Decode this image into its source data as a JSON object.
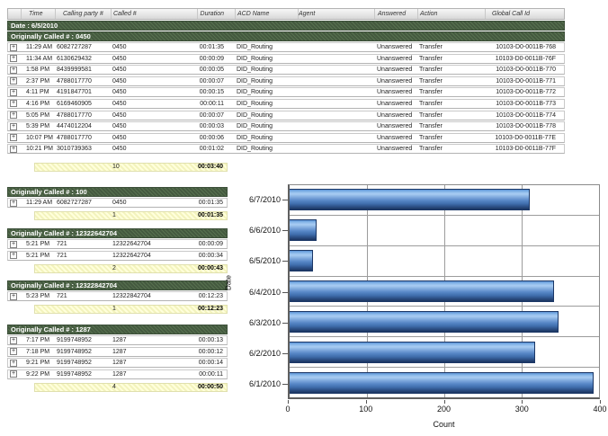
{
  "table": {
    "columns": [
      "Time",
      "Calling party #",
      "Called #",
      "Duration",
      "ACD Name",
      "Agent",
      "Answered",
      "Action",
      "Global Call Id"
    ],
    "expand_icon": "+"
  },
  "groups": [
    {
      "date_banner": "Date : 6/5/2010",
      "banner": "Originally Called # : 0450",
      "rows": [
        {
          "time": "11:29 AM",
          "calling": "6082727287",
          "called": "0450",
          "duration": "00:01:35",
          "acd": "DID_Routing",
          "agent": "",
          "answered": "Unanswered",
          "action": "Transfer",
          "global_call_id": "10103-D0-0011B-768"
        },
        {
          "time": "11:34 AM",
          "calling": "6130629432",
          "called": "0450",
          "duration": "00:00:09",
          "acd": "DID_Routing",
          "agent": "",
          "answered": "Unanswered",
          "action": "Transfer",
          "global_call_id": "10103-D0-0011B-76F"
        },
        {
          "time": "1:58 PM",
          "calling": "8439999581",
          "called": "0450",
          "duration": "00:00:05",
          "acd": "DID_Routing",
          "agent": "",
          "answered": "Unanswered",
          "action": "Transfer",
          "global_call_id": "10103-D0-0011B-770"
        },
        {
          "time": "2:37 PM",
          "calling": "4788017770",
          "called": "0450",
          "duration": "00:00:07",
          "acd": "DID_Routing",
          "agent": "",
          "answered": "Unanswered",
          "action": "Transfer",
          "global_call_id": "10103-D0-0011B-771"
        },
        {
          "time": "4:11 PM",
          "calling": "4191847701",
          "called": "0450",
          "duration": "00:00:15",
          "acd": "DID_Routing",
          "agent": "",
          "answered": "Unanswered",
          "action": "Transfer",
          "global_call_id": "10103-D0-0011B-772"
        },
        {
          "time": "4:16 PM",
          "calling": "6169460905",
          "called": "0450",
          "duration": "00:00:11",
          "acd": "DID_Routing",
          "agent": "",
          "answered": "Unanswered",
          "action": "Transfer",
          "global_call_id": "10103-D0-0011B-773"
        },
        {
          "time": "5:05 PM",
          "calling": "4788017770",
          "called": "0450",
          "duration": "00:00:07",
          "acd": "DID_Routing",
          "agent": "",
          "answered": "Unanswered",
          "action": "Transfer",
          "global_call_id": "10103-D0-0011B-774"
        },
        {
          "time": "5:39 PM",
          "calling": "4474012204",
          "called": "0450",
          "duration": "00:00:03",
          "acd": "DID_Routing",
          "agent": "",
          "answered": "Unanswered",
          "action": "Transfer",
          "global_call_id": "10103-D0-0011B-778"
        },
        {
          "time": "10:07 PM",
          "calling": "4788017770",
          "called": "0450",
          "duration": "00:00:06",
          "acd": "DID_Routing",
          "agent": "",
          "answered": "Unanswered",
          "action": "Transfer",
          "global_call_id": "10103-D0-0011B-77E"
        },
        {
          "time": "10:21 PM",
          "calling": "3010739363",
          "called": "0450",
          "duration": "00:01:02",
          "acd": "DID_Routing",
          "agent": "",
          "answered": "Unanswered",
          "action": "Transfer",
          "global_call_id": "10103-D0-0011B-77F"
        }
      ],
      "summary": {
        "count": "10",
        "total_duration": "00:03:40"
      }
    },
    {
      "banner": "Originally Called # : 100",
      "rows": [
        {
          "time": "11:29 AM",
          "calling": "6082727287",
          "called": "0450",
          "duration": "00:01:35"
        }
      ],
      "summary": {
        "count": "1",
        "total_duration": "00:01:35"
      }
    },
    {
      "banner": "Originally Called # : 12322642704",
      "rows": [
        {
          "time": "5:21 PM",
          "calling": "721",
          "called": "12322642704",
          "duration": "00:00:09"
        },
        {
          "time": "5:21 PM",
          "calling": "721",
          "called": "12322642704",
          "duration": "00:00:34"
        }
      ],
      "summary": {
        "count": "2",
        "total_duration": "00:00:43"
      }
    },
    {
      "banner": "Originally Called # : 12322842704",
      "rows": [
        {
          "time": "5:23 PM",
          "calling": "721",
          "called": "12322842704",
          "duration": "00:12:23"
        }
      ],
      "summary": {
        "count": "1",
        "total_duration": "00:12:23"
      }
    },
    {
      "banner": "Originally Called # : 1287",
      "rows": [
        {
          "time": "7:17 PM",
          "calling": "9199748952",
          "called": "1287",
          "duration": "00:00:13"
        },
        {
          "time": "7:18 PM",
          "calling": "9199748952",
          "called": "1287",
          "duration": "00:00:12"
        },
        {
          "time": "9:21 PM",
          "calling": "9199748952",
          "called": "1287",
          "duration": "00:00:14"
        },
        {
          "time": "9:22 PM",
          "calling": "9199748952",
          "called": "1287",
          "duration": "00:00:11"
        }
      ],
      "summary": {
        "count": "4",
        "total_duration": "00:00:50"
      }
    }
  ],
  "chart_data": {
    "type": "bar",
    "orientation": "horizontal",
    "categories": [
      "6/7/2010",
      "6/6/2010",
      "6/5/2010",
      "6/4/2010",
      "6/3/2010",
      "6/2/2010",
      "6/1/2010"
    ],
    "values": [
      310,
      35,
      30,
      342,
      348,
      318,
      393
    ],
    "xlabel": "Count",
    "ylabel": "Date",
    "xlim": [
      0,
      400
    ],
    "xticks": [
      0,
      100,
      200,
      300,
      400
    ],
    "grid": true,
    "legend": "none",
    "bar_color": "#4f86c6"
  },
  "colors": {
    "banner_green": "#44593f",
    "summary_yellow": "#ffffcc",
    "bar_blue": "#4f86c6",
    "grid_gray": "#9c9c9c"
  }
}
